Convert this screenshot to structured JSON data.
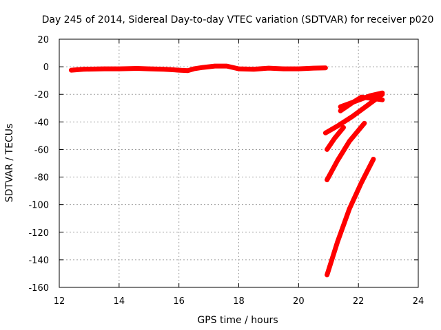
{
  "chart_data": {
    "type": "scatter",
    "title": "Day 245 of 2014, Sidereal Day-to-day VTEC variation (SDTVAR) for receiver p020",
    "xlabel": "GPS time / hours",
    "ylabel": "SDTVAR / TECUs",
    "xlim": [
      12,
      24
    ],
    "ylim": [
      -160,
      20
    ],
    "xticks": [
      12,
      14,
      16,
      18,
      20,
      22,
      24
    ],
    "yticks": [
      20,
      0,
      -20,
      -40,
      -60,
      -80,
      -100,
      -120,
      -140,
      -160
    ],
    "grid": true,
    "color": "#ff0000",
    "series": [
      {
        "x": [
          12.4,
          12.8,
          13.5,
          14.0,
          14.6,
          15.0,
          15.5,
          16.0,
          16.3,
          16.5,
          16.8,
          17.2,
          17.6,
          18.0,
          18.5,
          19.0,
          19.5,
          20.0,
          20.5,
          20.9
        ],
        "y": [
          -2.5,
          -1.8,
          -1.5,
          -1.5,
          -1.2,
          -1.5,
          -1.8,
          -2.5,
          -2.8,
          -1.5,
          -0.5,
          0.5,
          0.5,
          -1.5,
          -1.8,
          -1.0,
          -1.5,
          -1.5,
          -1.0,
          -0.8
        ]
      },
      {
        "x": [
          20.9,
          21.3,
          21.8,
          22.3,
          22.8
        ],
        "y": [
          -48,
          -43,
          -36,
          -28,
          -20
        ]
      },
      {
        "x": [
          21.4,
          21.9,
          22.4,
          22.8
        ],
        "y": [
          -29,
          -25,
          -21,
          -19
        ]
      },
      {
        "x": [
          20.95,
          21.2,
          21.5
        ],
        "y": [
          -60,
          -52,
          -44
        ]
      },
      {
        "x": [
          21.4,
          21.8,
          22.1,
          22.8
        ],
        "y": [
          -32,
          -26,
          -22,
          -24
        ]
      },
      {
        "x": [
          20.95,
          21.3,
          21.7,
          22.2
        ],
        "y": [
          -82,
          -68,
          -54,
          -41
        ]
      },
      {
        "x": [
          20.95,
          21.3,
          21.7,
          22.1,
          22.5
        ],
        "y": [
          -151,
          -127,
          -103,
          -84,
          -67
        ]
      }
    ]
  }
}
